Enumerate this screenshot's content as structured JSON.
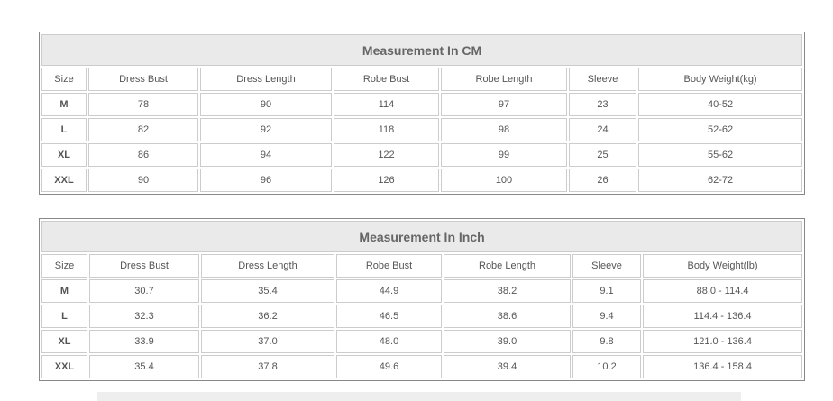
{
  "tables": [
    {
      "title": "Measurement In CM",
      "headers": [
        "Size",
        "Dress Bust",
        "Dress Length",
        "Robe Bust",
        "Robe Length",
        "Sleeve",
        "Body Weight(kg)"
      ],
      "rows": [
        [
          "M",
          "78",
          "90",
          "114",
          "97",
          "23",
          "40-52"
        ],
        [
          "L",
          "82",
          "92",
          "118",
          "98",
          "24",
          "52-62"
        ],
        [
          "XL",
          "86",
          "94",
          "122",
          "99",
          "25",
          "55-62"
        ],
        [
          "XXL",
          "90",
          "96",
          "126",
          "100",
          "26",
          "62-72"
        ]
      ]
    },
    {
      "title": "Measurement In Inch",
      "headers": [
        "Size",
        "Dress Bust",
        "Dress Length",
        "Robe Bust",
        "Robe Length",
        "Sleeve",
        "Body Weight(lb)"
      ],
      "rows": [
        [
          "M",
          "30.7",
          "35.4",
          "44.9",
          "38.2",
          "9.1",
          "88.0 - 114.4"
        ],
        [
          "L",
          "32.3",
          "36.2",
          "46.5",
          "38.6",
          "9.4",
          "114.4 - 136.4"
        ],
        [
          "XL",
          "33.9",
          "37.0",
          "48.0",
          "39.0",
          "9.8",
          "121.0 - 136.4"
        ],
        [
          "XXL",
          "35.4",
          "37.8",
          "49.6",
          "39.4",
          "10.2",
          "136.4 - 158.4"
        ]
      ]
    }
  ]
}
